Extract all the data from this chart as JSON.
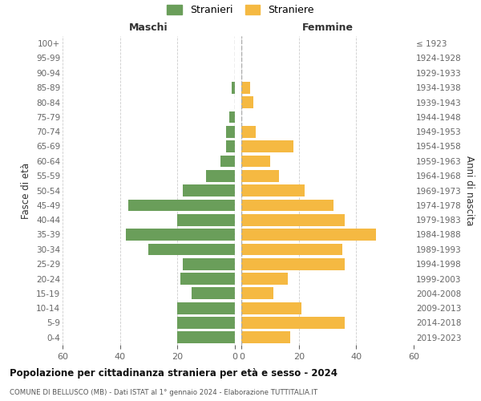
{
  "age_groups": [
    "0-4",
    "5-9",
    "10-14",
    "15-19",
    "20-24",
    "25-29",
    "30-34",
    "35-39",
    "40-44",
    "45-49",
    "50-54",
    "55-59",
    "60-64",
    "65-69",
    "70-74",
    "75-79",
    "80-84",
    "85-89",
    "90-94",
    "95-99",
    "100+"
  ],
  "birth_years": [
    "2019-2023",
    "2014-2018",
    "2009-2013",
    "2004-2008",
    "1999-2003",
    "1994-1998",
    "1989-1993",
    "1984-1988",
    "1979-1983",
    "1974-1978",
    "1969-1973",
    "1964-1968",
    "1959-1963",
    "1954-1958",
    "1949-1953",
    "1944-1948",
    "1939-1943",
    "1934-1938",
    "1929-1933",
    "1924-1928",
    "≤ 1923"
  ],
  "males": [
    20,
    20,
    20,
    15,
    19,
    18,
    30,
    38,
    20,
    37,
    18,
    10,
    5,
    3,
    3,
    2,
    0,
    1,
    0,
    0,
    0
  ],
  "females": [
    17,
    36,
    21,
    11,
    16,
    36,
    35,
    47,
    36,
    32,
    22,
    13,
    10,
    18,
    5,
    0,
    4,
    3,
    0,
    0,
    0
  ],
  "male_color": "#6a9e5a",
  "female_color": "#f5b942",
  "title_main": "Popolazione per cittadinanza straniera per età e sesso - 2024",
  "title_sub": "COMUNE DI BELLUSCO (MB) - Dati ISTAT al 1° gennaio 2024 - Elaborazione TUTTITALIA.IT",
  "label_maschi": "Maschi",
  "label_femmine": "Femmine",
  "label_stranieri": "Stranieri",
  "label_straniere": "Straniere",
  "ylabel_left": "Fasce di età",
  "ylabel_right": "Anni di nascita",
  "xlim": 60,
  "bg_color": "#ffffff",
  "grid_color": "#cccccc",
  "bar_height": 0.8,
  "dashed_line_color": "#aaaaaa"
}
